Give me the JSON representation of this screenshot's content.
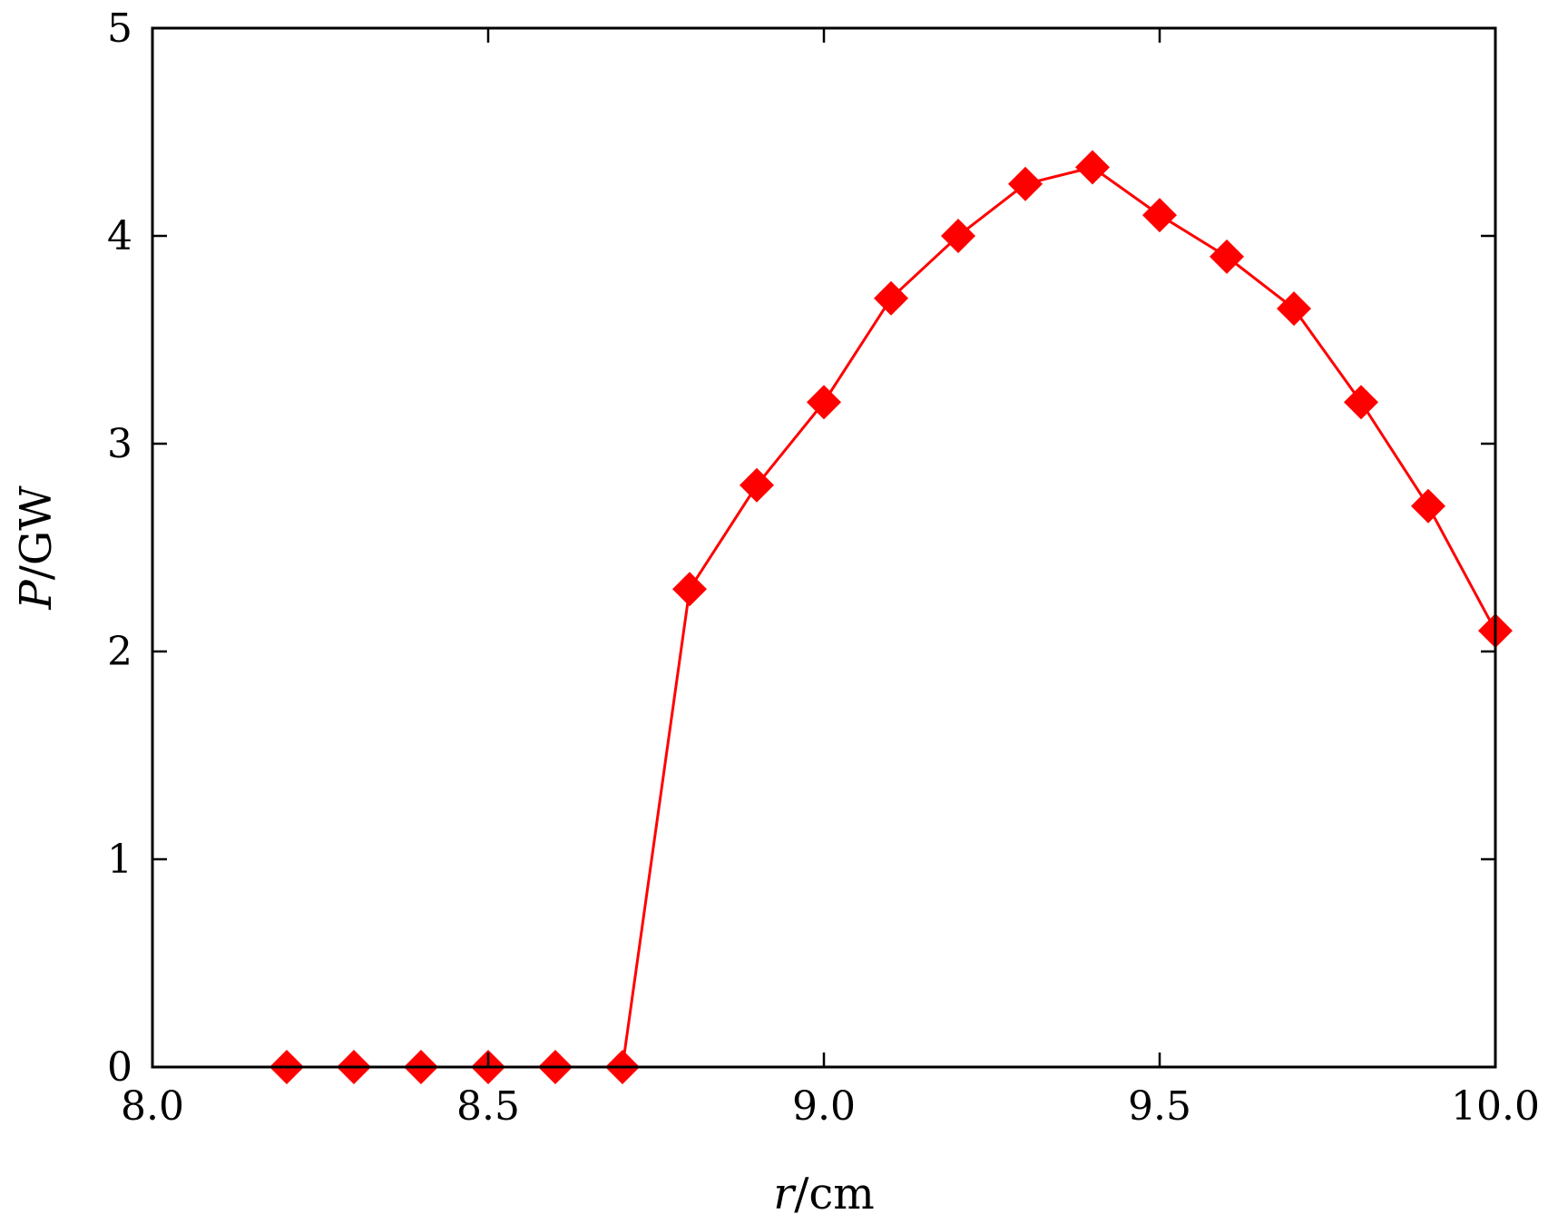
{
  "chart_data": {
    "type": "line",
    "xlabel_var": "r",
    "xlabel_unit": "/cm",
    "ylabel_var": "P",
    "ylabel_unit": "/GW",
    "xlim": [
      8.0,
      10.0
    ],
    "ylim": [
      0,
      5
    ],
    "xticks": [
      8.0,
      8.5,
      9.0,
      9.5,
      10.0
    ],
    "xtick_labels": [
      "8.0",
      "8.5",
      "9.0",
      "9.5",
      "10.0"
    ],
    "yticks": [
      0,
      1,
      2,
      3,
      4,
      5
    ],
    "ytick_labels": [
      "0",
      "1",
      "2",
      "3",
      "4",
      "5"
    ],
    "grid": false,
    "series": [
      {
        "color": "#ff0000",
        "marker": "diamond",
        "x": [
          8.2,
          8.3,
          8.4,
          8.5,
          8.6,
          8.7,
          8.8,
          8.9,
          9.0,
          9.1,
          9.2,
          9.3,
          9.4,
          9.5,
          9.6,
          9.7,
          9.8,
          9.9,
          10.0
        ],
        "y": [
          0,
          0,
          0,
          0,
          0,
          0,
          2.3,
          2.8,
          3.2,
          3.7,
          4.0,
          4.25,
          4.33,
          4.1,
          3.9,
          3.65,
          3.2,
          2.7,
          2.1
        ]
      }
    ]
  }
}
